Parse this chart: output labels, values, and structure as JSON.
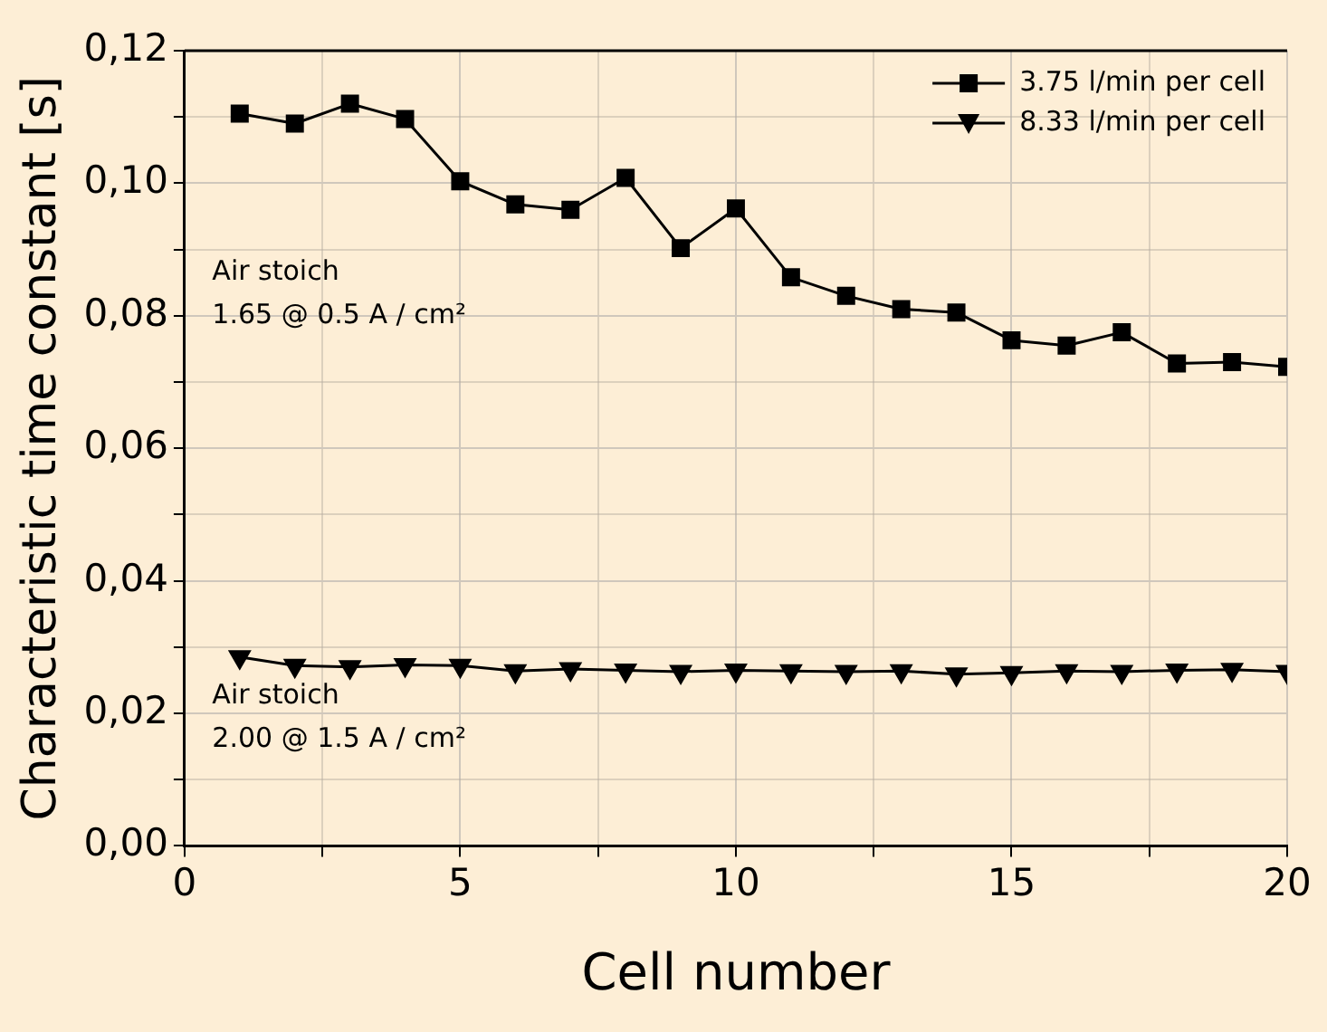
{
  "chart_data": {
    "type": "line",
    "xlabel": "Cell number",
    "ylabel": "Characteristic time constant [s]",
    "x": [
      1,
      2,
      3,
      4,
      5,
      6,
      7,
      8,
      9,
      10,
      11,
      12,
      13,
      14,
      15,
      16,
      17,
      18,
      19,
      20
    ],
    "series": [
      {
        "name": "3.75 l/min per cell",
        "color": "#000000",
        "marker": "square",
        "values": [
          0.1105,
          0.109,
          0.112,
          0.1097,
          0.1003,
          0.0968,
          0.096,
          0.1008,
          0.0902,
          0.0962,
          0.0858,
          0.083,
          0.081,
          0.0805,
          0.0763,
          0.0755,
          0.0775,
          0.0728,
          0.073,
          0.0723
        ]
      },
      {
        "name": "8.33 l/min per cell",
        "color": "#000000",
        "marker": "triangle",
        "values": [
          0.0285,
          0.0272,
          0.027,
          0.0273,
          0.0272,
          0.0264,
          0.0267,
          0.0265,
          0.0263,
          0.0265,
          0.0264,
          0.0263,
          0.0264,
          0.0259,
          0.0261,
          0.0264,
          0.0263,
          0.0265,
          0.0266,
          0.0263
        ]
      }
    ],
    "xlim": [
      0,
      20
    ],
    "xticks": [
      0,
      {
        "value": 2.5,
        "label": null
      },
      5,
      {
        "value": 7.5,
        "label": null
      },
      10,
      {
        "value": 12.5,
        "label": null
      },
      15,
      {
        "value": 17.5,
        "label": null
      },
      20
    ],
    "ylim": [
      0,
      0.12
    ],
    "yticks": [
      {
        "value": 0,
        "label": "0,00"
      },
      {
        "value": 0.01,
        "label": null
      },
      {
        "value": 0.02,
        "label": "0,02"
      },
      {
        "value": 0.03,
        "label": null
      },
      {
        "value": 0.04,
        "label": "0,04"
      },
      {
        "value": 0.05,
        "label": null
      },
      {
        "value": 0.06,
        "label": "0,06"
      },
      {
        "value": 0.07,
        "label": null
      },
      {
        "value": 0.08,
        "label": "0,08"
      },
      {
        "value": 0.09,
        "label": null
      },
      {
        "value": 0.1,
        "label": "0,10"
      },
      {
        "value": 0.11,
        "label": null
      },
      {
        "value": 0.12,
        "label": "0,12"
      }
    ],
    "grid": true,
    "legend": "top right",
    "line_style": "solid",
    "annotations": [
      "Air stoich\n1.65 @ 0.5 A / cm²",
      "Air stoich\n2.00 @ 1.5 A / cm²"
    ]
  }
}
